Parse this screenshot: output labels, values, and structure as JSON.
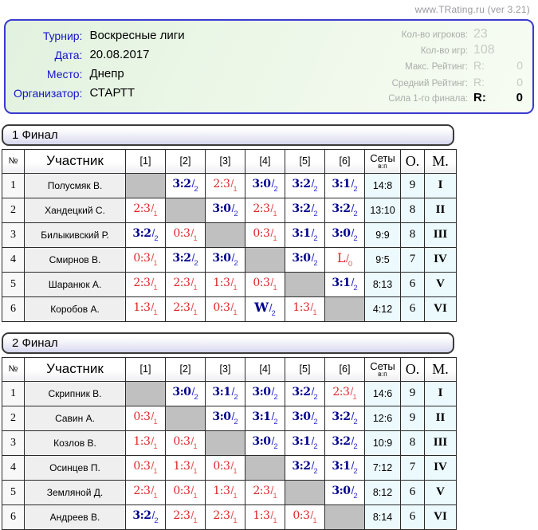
{
  "site": {
    "banner": "www.TRating.ru (ver 3.21)"
  },
  "info": {
    "left": [
      {
        "label": "Турнир:",
        "value": "Воскресные лиги"
      },
      {
        "label": "Дата:",
        "value": "20.08.2017"
      },
      {
        "label": "Место:",
        "value": "Днепр"
      },
      {
        "label": "Организатор:",
        "value": "СТАРТТ"
      }
    ],
    "right": [
      {
        "label": "Кол-во игроков:",
        "prefix": "",
        "value": "23",
        "style": "big-dim"
      },
      {
        "label": "Кол-во игр:",
        "prefix": "",
        "value": "108",
        "style": "big-dim"
      },
      {
        "label": "Макс. Рейтинг:",
        "prefix": "R:",
        "value": "0",
        "style": "dim"
      },
      {
        "label": "Средний Рейтинг:",
        "prefix": "R:",
        "value": "0",
        "style": "dim"
      },
      {
        "label": "Сила 1-го финала:",
        "prefix": "R:",
        "value": "0",
        "style": "strong"
      }
    ]
  },
  "table_headers": {
    "num": "№",
    "name": "Участник",
    "games": [
      "[1]",
      "[2]",
      "[3]",
      "[4]",
      "[5]",
      "[6]"
    ],
    "sets": "Сеты",
    "sets_sub": "в:п",
    "wins": "О.",
    "place": "М."
  },
  "colors": {
    "win_score": "#00008b",
    "win_frac": "#2d2dcc",
    "loss_score": "#e02525",
    "panel_border": "#3a3ad0",
    "label_blue": "#1414cc",
    "diagonal_gray": "#c0c0c0",
    "stat_bg": "#ecf9fd"
  },
  "tables": [
    {
      "title": "1 Финал",
      "rows": [
        {
          "num": "1",
          "name": "Полусмяк В.",
          "games": [
            null,
            {
              "score": "3:2",
              "g": "2",
              "win": true
            },
            {
              "score": "2:3",
              "g": "1",
              "win": false
            },
            {
              "score": "3:0",
              "g": "2",
              "win": true
            },
            {
              "score": "3:2",
              "g": "2",
              "win": true
            },
            {
              "score": "3:1",
              "g": "2",
              "win": true
            }
          ],
          "sets": "14:8",
          "wins": "9",
          "place": "I"
        },
        {
          "num": "2",
          "name": "Хандецкий С.",
          "games": [
            {
              "score": "2:3",
              "g": "1",
              "win": false
            },
            null,
            {
              "score": "3:0",
              "g": "2",
              "win": true
            },
            {
              "score": "2:3",
              "g": "1",
              "win": false
            },
            {
              "score": "3:2",
              "g": "2",
              "win": true
            },
            {
              "score": "3:2",
              "g": "2",
              "win": true
            }
          ],
          "sets": "13:10",
          "wins": "8",
          "place": "II"
        },
        {
          "num": "3",
          "name": "Билыкивский Р.",
          "games": [
            {
              "score": "3:2",
              "g": "2",
              "win": true
            },
            {
              "score": "0:3",
              "g": "1",
              "win": false
            },
            null,
            {
              "score": "0:3",
              "g": "1",
              "win": false
            },
            {
              "score": "3:1",
              "g": "2",
              "win": true
            },
            {
              "score": "3:0",
              "g": "2",
              "win": true
            }
          ],
          "sets": "9:9",
          "wins": "8",
          "place": "III"
        },
        {
          "num": "4",
          "name": "Смирнов В.",
          "games": [
            {
              "score": "0:3",
              "g": "1",
              "win": false
            },
            {
              "score": "3:2",
              "g": "2",
              "win": true
            },
            {
              "score": "3:0",
              "g": "2",
              "win": true
            },
            null,
            {
              "score": "3:0",
              "g": "2",
              "win": true
            },
            {
              "score": "L",
              "g": "0",
              "win": false,
              "letter": true
            }
          ],
          "sets": "9:5",
          "wins": "7",
          "place": "IV"
        },
        {
          "num": "5",
          "name": "Шаранюк А.",
          "games": [
            {
              "score": "2:3",
              "g": "1",
              "win": false
            },
            {
              "score": "2:3",
              "g": "1",
              "win": false
            },
            {
              "score": "1:3",
              "g": "1",
              "win": false
            },
            {
              "score": "0:3",
              "g": "1",
              "win": false
            },
            null,
            {
              "score": "3:1",
              "g": "2",
              "win": true
            }
          ],
          "sets": "8:13",
          "wins": "6",
          "place": "V"
        },
        {
          "num": "6",
          "name": "Коробов А.",
          "games": [
            {
              "score": "1:3",
              "g": "1",
              "win": false
            },
            {
              "score": "2:3",
              "g": "1",
              "win": false
            },
            {
              "score": "0:3",
              "g": "1",
              "win": false
            },
            {
              "score": "W",
              "g": "2",
              "win": true,
              "letter": true
            },
            {
              "score": "1:3",
              "g": "1",
              "win": false
            },
            null
          ],
          "sets": "4:12",
          "wins": "6",
          "place": "VI"
        }
      ]
    },
    {
      "title": "2 Финал",
      "rows": [
        {
          "num": "1",
          "name": "Скрипник В.",
          "games": [
            null,
            {
              "score": "3:0",
              "g": "2",
              "win": true
            },
            {
              "score": "3:1",
              "g": "2",
              "win": true
            },
            {
              "score": "3:0",
              "g": "2",
              "win": true
            },
            {
              "score": "3:2",
              "g": "2",
              "win": true
            },
            {
              "score": "2:3",
              "g": "1",
              "win": false
            }
          ],
          "sets": "14:6",
          "wins": "9",
          "place": "I"
        },
        {
          "num": "2",
          "name": "Савин А.",
          "games": [
            {
              "score": "0:3",
              "g": "1",
              "win": false
            },
            null,
            {
              "score": "3:0",
              "g": "2",
              "win": true
            },
            {
              "score": "3:1",
              "g": "2",
              "win": true
            },
            {
              "score": "3:0",
              "g": "2",
              "win": true
            },
            {
              "score": "3:2",
              "g": "2",
              "win": true
            }
          ],
          "sets": "12:6",
          "wins": "9",
          "place": "II"
        },
        {
          "num": "3",
          "name": "Козлов В.",
          "games": [
            {
              "score": "1:3",
              "g": "1",
              "win": false
            },
            {
              "score": "0:3",
              "g": "1",
              "win": false
            },
            null,
            {
              "score": "3:0",
              "g": "2",
              "win": true
            },
            {
              "score": "3:1",
              "g": "2",
              "win": true
            },
            {
              "score": "3:2",
              "g": "2",
              "win": true
            }
          ],
          "sets": "10:9",
          "wins": "8",
          "place": "III"
        },
        {
          "num": "4",
          "name": "Осинцев П.",
          "games": [
            {
              "score": "0:3",
              "g": "1",
              "win": false
            },
            {
              "score": "1:3",
              "g": "1",
              "win": false
            },
            {
              "score": "0:3",
              "g": "1",
              "win": false
            },
            null,
            {
              "score": "3:2",
              "g": "2",
              "win": true
            },
            {
              "score": "3:1",
              "g": "2",
              "win": true
            }
          ],
          "sets": "7:12",
          "wins": "7",
          "place": "IV"
        },
        {
          "num": "5",
          "name": "Земляной Д.",
          "games": [
            {
              "score": "2:3",
              "g": "1",
              "win": false
            },
            {
              "score": "0:3",
              "g": "1",
              "win": false
            },
            {
              "score": "1:3",
              "g": "1",
              "win": false
            },
            {
              "score": "2:3",
              "g": "1",
              "win": false
            },
            null,
            {
              "score": "3:0",
              "g": "2",
              "win": true
            }
          ],
          "sets": "8:12",
          "wins": "6",
          "place": "V"
        },
        {
          "num": "6",
          "name": "Андреев В.",
          "games": [
            {
              "score": "3:2",
              "g": "2",
              "win": true
            },
            {
              "score": "2:3",
              "g": "1",
              "win": false
            },
            {
              "score": "2:3",
              "g": "1",
              "win": false
            },
            {
              "score": "1:3",
              "g": "1",
              "win": false
            },
            {
              "score": "0:3",
              "g": "1",
              "win": false
            },
            null
          ],
          "sets": "8:14",
          "wins": "6",
          "place": "VI"
        }
      ]
    }
  ]
}
